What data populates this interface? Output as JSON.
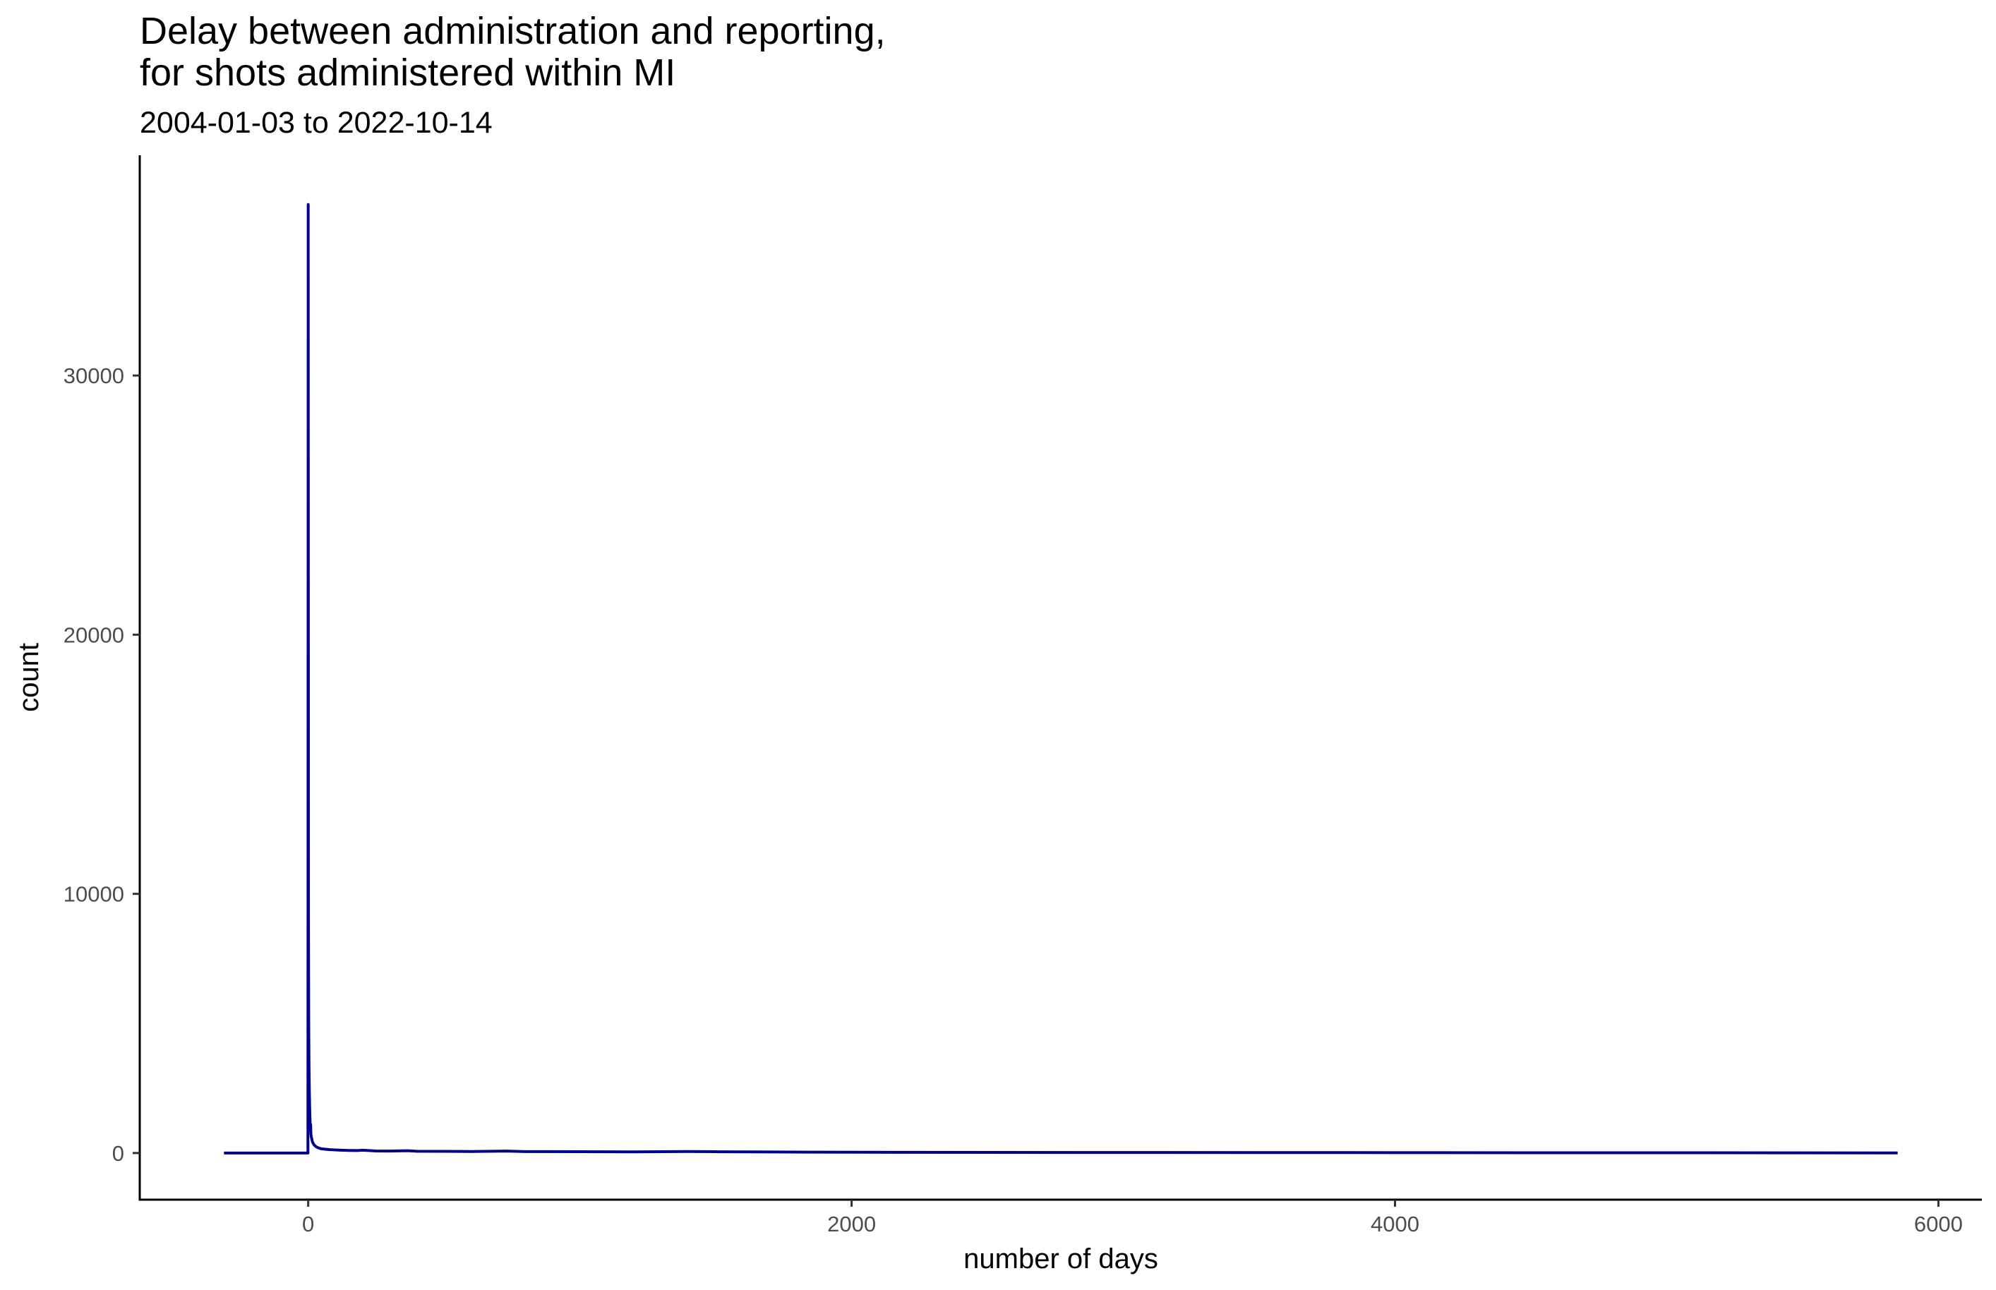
{
  "chart_data": {
    "type": "line",
    "title_lines": [
      "Delay between administration and reporting,",
      "for shots administered within MI"
    ],
    "subtitle": "2004-01-03 to 2022-10-14",
    "xlabel": "number of days",
    "ylabel": "count",
    "x_ticks": [
      0,
      2000,
      4000,
      6000
    ],
    "x_tick_labels": [
      "0",
      "2000",
      "4000",
      "6000"
    ],
    "y_ticks": [
      0,
      10000,
      20000,
      30000
    ],
    "y_tick_labels": [
      "0",
      "10000",
      "20000",
      "30000"
    ],
    "xlim": [
      -620,
      6160
    ],
    "ylim": [
      -1800,
      38500
    ],
    "grid": false,
    "legend": "none",
    "line_color": "#00008B",
    "series": [
      {
        "x": [
          -310,
          -1,
          0,
          1,
          2,
          3,
          4,
          5,
          6,
          7,
          8,
          9,
          10,
          11,
          12,
          13,
          14,
          15,
          17,
          19,
          21,
          23,
          25,
          28,
          31,
          35,
          40,
          45,
          50,
          60,
          70,
          80,
          90,
          100,
          120,
          150,
          180,
          200,
          250,
          300,
          365,
          400,
          500,
          600,
          730,
          800,
          1000,
          1200,
          1400,
          1500,
          1700,
          2000,
          2500,
          3000,
          3500,
          4000,
          4500,
          5000,
          5500,
          5850
        ],
        "y": [
          0,
          0,
          36600,
          9200,
          4900,
          3400,
          2500,
          1900,
          1500,
          1200,
          900,
          1100,
          750,
          650,
          600,
          550,
          500,
          450,
          400,
          360,
          330,
          300,
          280,
          250,
          230,
          210,
          190,
          170,
          160,
          150,
          140,
          130,
          125,
          120,
          110,
          100,
          95,
          110,
          80,
          75,
          90,
          70,
          65,
          60,
          75,
          55,
          50,
          45,
          60,
          50,
          40,
          30,
          25,
          20,
          18,
          15,
          12,
          10,
          8,
          5
        ]
      }
    ]
  }
}
